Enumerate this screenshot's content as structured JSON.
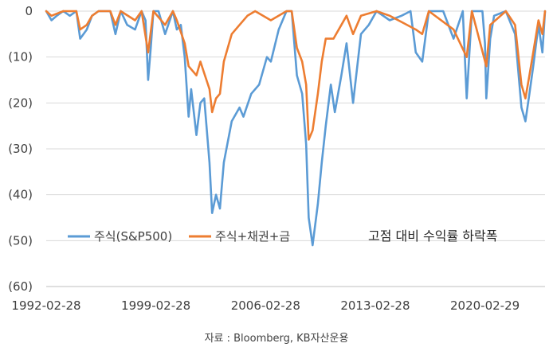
{
  "chart_data": {
    "type": "line",
    "title": "",
    "annotation": "고점 대비 수익률 하락폭",
    "xlabel": "",
    "ylabel": "",
    "ylim": [
      -60,
      0
    ],
    "yticks": [
      0,
      -10,
      -20,
      -30,
      -40,
      -50,
      -60
    ],
    "ytick_labels": [
      "0",
      "(10)",
      "(20)",
      "(30)",
      "(40)",
      "(50)",
      "(60)"
    ],
    "xlim": [
      "1992-02-28",
      "2023-12-31"
    ],
    "xtick_labels": [
      "1992-02-28",
      "1999-02-28",
      "2006-02-28",
      "2013-02-28",
      "2020-02-29"
    ],
    "grid": "horizontal",
    "legend_position": "bottom-left",
    "colors": {
      "stock": "#5b9bd5",
      "mix": "#ed7d31",
      "grid": "#d9d9d9"
    },
    "series": [
      {
        "name": "주식(S&P500)",
        "color": "#5b9bd5",
        "points": [
          [
            "1992-02-28",
            0
          ],
          [
            "1992-06-30",
            -2
          ],
          [
            "1992-10-31",
            -1
          ],
          [
            "1993-03-31",
            0
          ],
          [
            "1993-08-31",
            -1
          ],
          [
            "1994-01-31",
            0
          ],
          [
            "1994-04-30",
            -6
          ],
          [
            "1994-09-30",
            -4
          ],
          [
            "1995-01-31",
            -1
          ],
          [
            "1995-06-30",
            0
          ],
          [
            "1996-03-31",
            0
          ],
          [
            "1996-07-31",
            -5
          ],
          [
            "1996-11-30",
            0
          ],
          [
            "1997-04-30",
            -3
          ],
          [
            "1997-10-31",
            -4
          ],
          [
            "1998-03-31",
            0
          ],
          [
            "1998-06-30",
            -2
          ],
          [
            "1998-08-31",
            -15
          ],
          [
            "1998-10-31",
            -8
          ],
          [
            "1998-12-31",
            0
          ],
          [
            "1999-04-30",
            0
          ],
          [
            "1999-09-30",
            -5
          ],
          [
            "2000-03-31",
            0
          ],
          [
            "2000-06-30",
            -4
          ],
          [
            "2000-09-30",
            -3
          ],
          [
            "2000-12-31",
            -10
          ],
          [
            "2001-03-31",
            -23
          ],
          [
            "2001-05-31",
            -17
          ],
          [
            "2001-09-30",
            -27
          ],
          [
            "2001-12-31",
            -20
          ],
          [
            "2002-03-31",
            -19
          ],
          [
            "2002-07-31",
            -33
          ],
          [
            "2002-09-30",
            -44
          ],
          [
            "2002-12-31",
            -40
          ],
          [
            "2003-03-31",
            -43
          ],
          [
            "2003-06-30",
            -33
          ],
          [
            "2003-12-31",
            -24
          ],
          [
            "2004-06-30",
            -21
          ],
          [
            "2004-09-30",
            -23
          ],
          [
            "2005-03-31",
            -18
          ],
          [
            "2005-09-30",
            -16
          ],
          [
            "2006-03-31",
            -10
          ],
          [
            "2006-06-30",
            -11
          ],
          [
            "2006-12-31",
            -4
          ],
          [
            "2007-06-30",
            0
          ],
          [
            "2007-10-31",
            0
          ],
          [
            "2008-02-29",
            -14
          ],
          [
            "2008-06-30",
            -18
          ],
          [
            "2008-09-30",
            -29
          ],
          [
            "2008-11-30",
            -45
          ],
          [
            "2009-02-28",
            -51
          ],
          [
            "2009-06-30",
            -42
          ],
          [
            "2009-09-30",
            -33
          ],
          [
            "2009-12-31",
            -25
          ],
          [
            "2010-04-30",
            -16
          ],
          [
            "2010-07-31",
            -22
          ],
          [
            "2010-12-31",
            -14
          ],
          [
            "2011-04-30",
            -7
          ],
          [
            "2011-09-30",
            -20
          ],
          [
            "2012-03-31",
            -5
          ],
          [
            "2012-09-30",
            -3
          ],
          [
            "2013-03-31",
            0
          ],
          [
            "2014-01-31",
            -2
          ],
          [
            "2014-10-31",
            -1
          ],
          [
            "2015-05-31",
            0
          ],
          [
            "2015-09-30",
            -9
          ],
          [
            "2016-02-29",
            -11
          ],
          [
            "2016-07-31",
            0
          ],
          [
            "2017-06-30",
            0
          ],
          [
            "2018-02-28",
            -6
          ],
          [
            "2018-09-30",
            0
          ],
          [
            "2018-12-31",
            -19
          ],
          [
            "2019-04-30",
            0
          ],
          [
            "2019-12-31",
            0
          ],
          [
            "2020-02-29",
            -7
          ],
          [
            "2020-03-31",
            -19
          ],
          [
            "2020-06-30",
            -6
          ],
          [
            "2020-09-30",
            -1
          ],
          [
            "2021-06-30",
            0
          ],
          [
            "2022-01-31",
            -5
          ],
          [
            "2022-06-30",
            -21
          ],
          [
            "2022-09-30",
            -24
          ],
          [
            "2022-12-31",
            -18
          ],
          [
            "2023-03-31",
            -12
          ],
          [
            "2023-07-31",
            -3
          ],
          [
            "2023-10-31",
            -9
          ],
          [
            "2023-12-31",
            0
          ]
        ]
      },
      {
        "name": "주식+채권+금",
        "color": "#ed7d31",
        "points": [
          [
            "1992-02-28",
            0
          ],
          [
            "1992-06-30",
            -1
          ],
          [
            "1993-03-31",
            0
          ],
          [
            "1994-01-31",
            0
          ],
          [
            "1994-04-30",
            -4
          ],
          [
            "1994-09-30",
            -3
          ],
          [
            "1995-01-31",
            -1
          ],
          [
            "1995-06-30",
            0
          ],
          [
            "1996-03-31",
            0
          ],
          [
            "1996-07-31",
            -3
          ],
          [
            "1996-11-30",
            0
          ],
          [
            "1997-10-31",
            -2
          ],
          [
            "1998-03-31",
            0
          ],
          [
            "1998-08-31",
            -9
          ],
          [
            "1998-12-31",
            0
          ],
          [
            "1999-09-30",
            -3
          ],
          [
            "2000-03-31",
            0
          ],
          [
            "2000-06-30",
            -2
          ],
          [
            "2000-12-31",
            -7
          ],
          [
            "2001-03-31",
            -12
          ],
          [
            "2001-09-30",
            -14
          ],
          [
            "2001-12-31",
            -11
          ],
          [
            "2002-07-31",
            -17
          ],
          [
            "2002-09-30",
            -22
          ],
          [
            "2002-12-31",
            -19
          ],
          [
            "2003-03-31",
            -18
          ],
          [
            "2003-06-30",
            -11
          ],
          [
            "2003-12-31",
            -5
          ],
          [
            "2004-06-30",
            -3
          ],
          [
            "2004-12-31",
            -1
          ],
          [
            "2005-06-30",
            0
          ],
          [
            "2006-06-30",
            -2
          ],
          [
            "2007-06-30",
            0
          ],
          [
            "2007-10-31",
            0
          ],
          [
            "2008-02-29",
            -8
          ],
          [
            "2008-06-30",
            -11
          ],
          [
            "2008-09-30",
            -16
          ],
          [
            "2008-11-30",
            -28
          ],
          [
            "2009-02-28",
            -26
          ],
          [
            "2009-06-30",
            -18
          ],
          [
            "2009-09-30",
            -11
          ],
          [
            "2009-12-31",
            -6
          ],
          [
            "2010-06-30",
            -6
          ],
          [
            "2010-12-31",
            -3
          ],
          [
            "2011-04-30",
            -1
          ],
          [
            "2011-09-30",
            -5
          ],
          [
            "2012-03-31",
            -1
          ],
          [
            "2013-03-31",
            0
          ],
          [
            "2014-01-31",
            -1
          ],
          [
            "2015-09-30",
            -4
          ],
          [
            "2016-02-29",
            -5
          ],
          [
            "2016-07-31",
            0
          ],
          [
            "2018-02-28",
            -4
          ],
          [
            "2018-12-31",
            -10
          ],
          [
            "2019-04-30",
            0
          ],
          [
            "2020-03-31",
            -12
          ],
          [
            "2020-06-30",
            -3
          ],
          [
            "2021-06-30",
            0
          ],
          [
            "2022-01-31",
            -3
          ],
          [
            "2022-06-30",
            -16
          ],
          [
            "2022-09-30",
            -19
          ],
          [
            "2022-12-31",
            -14
          ],
          [
            "2023-03-31",
            -9
          ],
          [
            "2023-07-31",
            -2
          ],
          [
            "2023-10-31",
            -5
          ],
          [
            "2023-12-31",
            0
          ]
        ]
      }
    ]
  },
  "source": "자료 : Bloomberg, KB자산운용"
}
